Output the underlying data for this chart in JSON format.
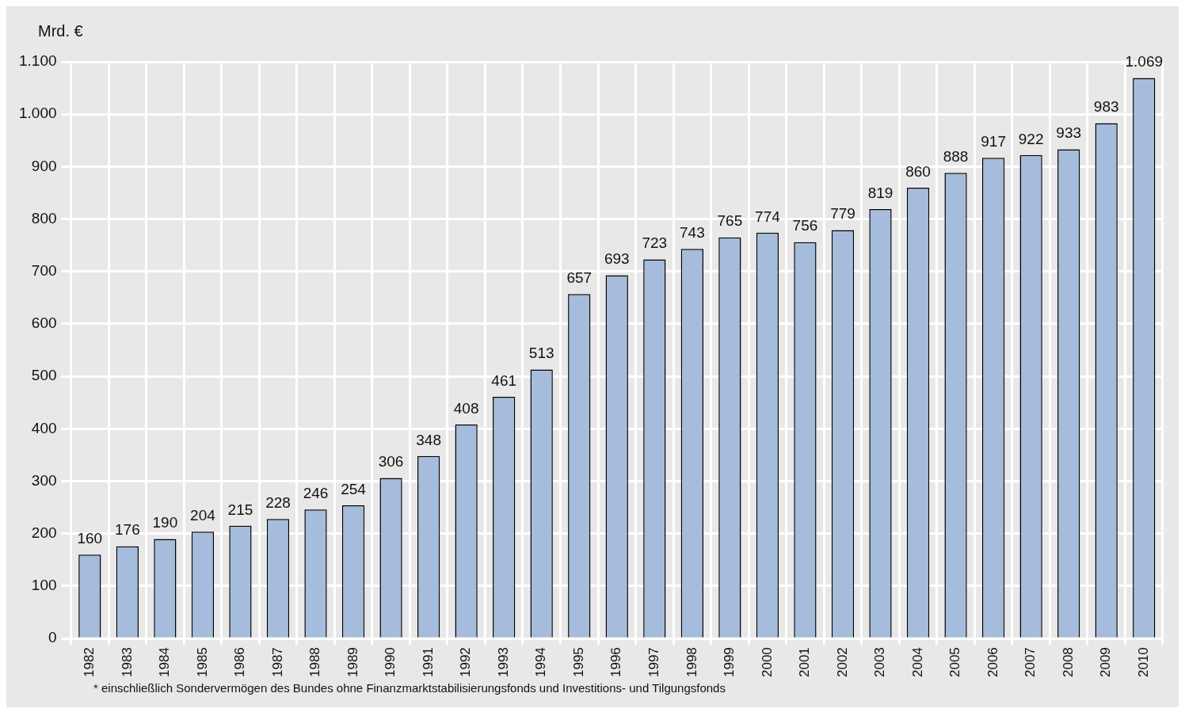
{
  "chart_data": {
    "type": "bar",
    "ylabel": "Mrd. €",
    "categories": [
      "1982",
      "1983",
      "1984",
      "1985",
      "1986",
      "1987",
      "1988",
      "1989",
      "1990",
      "1991",
      "1992",
      "1993",
      "1994",
      "1995",
      "1996",
      "1997",
      "1998",
      "1999",
      "2000",
      "2001",
      "2002",
      "2003",
      "2004",
      "2005",
      "2006",
      "2007",
      "2008",
      "2009",
      "2010"
    ],
    "series": [
      {
        "color": "#a6bcdc",
        "values": [
          160,
          176,
          190,
          204,
          215,
          228,
          246,
          254,
          306,
          348,
          408,
          461,
          513,
          657,
          693,
          723,
          743,
          765,
          774,
          756,
          779,
          819,
          860,
          888,
          917,
          922,
          933,
          983,
          1069
        ],
        "value_labels": [
          "160",
          "176",
          "190",
          "204",
          "215",
          "228",
          "246",
          "254",
          "306",
          "348",
          "408",
          "461",
          "513",
          "657",
          "693",
          "723",
          "743",
          "765",
          "774",
          "756",
          "779",
          "819",
          "860",
          "888",
          "917",
          "922",
          "933",
          "983",
          "1.069"
        ]
      }
    ],
    "ylim": [
      0,
      1100
    ],
    "yticks": [
      0,
      100,
      200,
      300,
      400,
      500,
      600,
      700,
      800,
      900,
      {
        "value": 1000,
        "label": "1.000"
      },
      {
        "value": 1100,
        "label": "1.100"
      }
    ],
    "grid": true,
    "legend": false,
    "annotations": [
      "* einschließlich Sondervermögen des Bundes ohne Finanzmarktstabilisierungsfonds und Investitions- und Tilgungsfonds"
    ]
  }
}
